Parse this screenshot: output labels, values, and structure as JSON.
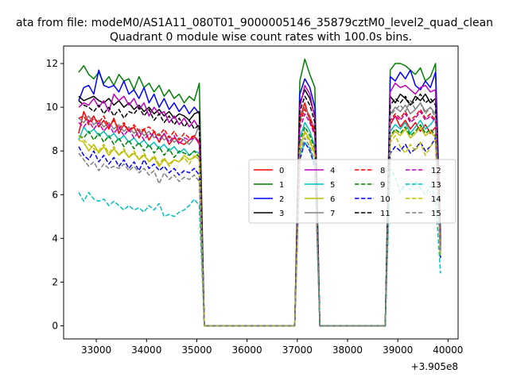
{
  "chart_data": {
    "type": "line",
    "suptitle": "ata from file: modeM0/AS1A11_080T01_9000005146_35879cztM0_level2_quad_clean",
    "title": "Quadrant 0 module wise count rates with 100.0s bins.",
    "xlabel": "",
    "ylabel": "",
    "offset_text": "+3.905e8",
    "xlim": [
      32350,
      40200
    ],
    "ylim": [
      -0.6,
      12.8
    ],
    "xticks": [
      33000,
      34000,
      35000,
      36000,
      37000,
      38000,
      39000,
      40000
    ],
    "yticks": [
      0,
      2,
      4,
      6,
      8,
      10,
      12
    ],
    "grid": false,
    "legend": {
      "placement": "center-right",
      "columns": 4
    },
    "segments": [
      {
        "name": "segment-1",
        "x_start": 32650,
        "x_end": 35050,
        "step": 100
      },
      {
        "name": "segment-2",
        "x_start": 37050,
        "x_end": 37350,
        "step": 100
      },
      {
        "name": "segment-3",
        "x_start": 38850,
        "x_end": 39850,
        "step": 100
      }
    ],
    "zero_x": [
      35150,
      36950,
      37450,
      38750
    ],
    "series": [
      {
        "name": "0",
        "color": "#ff0000",
        "dashed": false,
        "seg1": [
          8.8,
          9.8,
          9.3,
          9.6,
          9.1,
          9.4,
          9.0,
          9.5,
          8.8,
          9.2,
          8.9,
          9.1,
          8.6,
          9.0,
          8.5,
          8.9,
          8.4,
          8.8,
          8.3,
          8.6,
          8.4,
          8.3,
          8.5,
          8.7,
          8.3
        ],
        "seg2": [
          9.5,
          10.2,
          9.4,
          8.8
        ],
        "seg3": [
          9.2,
          9.6,
          9.1,
          9.4,
          9.0,
          9.3,
          8.9,
          9.2,
          8.8,
          9.1,
          3.6
        ]
      },
      {
        "name": "1",
        "color": "#008000",
        "dashed": false,
        "seg1": [
          11.6,
          11.9,
          11.5,
          11.3,
          11.6,
          11.1,
          11.4,
          11.0,
          11.5,
          11.2,
          11.3,
          10.8,
          11.4,
          10.9,
          11.1,
          10.7,
          11.0,
          10.5,
          10.8,
          10.4,
          10.6,
          10.2,
          10.5,
          10.3,
          11.1
        ],
        "seg2": [
          11.2,
          12.2,
          11.5,
          10.9
        ],
        "seg3": [
          11.7,
          12.0,
          12.0,
          11.9,
          11.7,
          11.5,
          11.8,
          11.2,
          11.4,
          12.0,
          4.3
        ]
      },
      {
        "name": "2",
        "color": "#0000ff",
        "dashed": false,
        "seg1": [
          10.3,
          10.9,
          11.0,
          10.6,
          11.7,
          11.0,
          10.9,
          11.0,
          10.7,
          11.2,
          10.6,
          10.8,
          10.4,
          10.9,
          10.2,
          10.6,
          10.0,
          10.4,
          9.9,
          10.2,
          9.8,
          10.1,
          9.7,
          10.0,
          9.7
        ],
        "seg2": [
          10.6,
          11.3,
          10.9,
          10.0
        ],
        "seg3": [
          11.4,
          11.2,
          11.6,
          11.3,
          11.7,
          11.0,
          10.8,
          11.2,
          10.9,
          11.6,
          4.0
        ]
      },
      {
        "name": "3",
        "color": "#000000",
        "dashed": false,
        "seg1": [
          10.5,
          10.3,
          10.4,
          10.5,
          10.3,
          10.2,
          10.4,
          10.1,
          10.3,
          10.0,
          10.2,
          9.9,
          10.1,
          9.8,
          10.0,
          9.7,
          9.9,
          9.6,
          9.8,
          9.5,
          9.7,
          9.6,
          9.4,
          9.7,
          9.8
        ],
        "seg2": [
          10.2,
          10.8,
          10.4,
          9.6
        ],
        "seg3": [
          10.5,
          10.2,
          10.6,
          10.4,
          10.1,
          10.5,
          10.3,
          10.6,
          10.2,
          10.4,
          3.7
        ]
      },
      {
        "name": "4",
        "color": "#bf00bf",
        "dashed": false,
        "seg1": [
          10.0,
          10.2,
          10.1,
          10.4,
          10.0,
          10.3,
          9.8,
          10.6,
          10.3,
          10.5,
          10.1,
          10.4,
          9.9,
          10.2,
          9.6,
          10.0,
          9.7,
          9.8,
          9.3,
          9.6,
          9.2,
          9.5,
          9.1,
          9.4,
          9.0
        ],
        "seg2": [
          10.0,
          11.0,
          10.6,
          9.5
        ],
        "seg3": [
          10.7,
          11.1,
          10.9,
          11.0,
          10.8,
          10.6,
          10.9,
          11.0,
          10.7,
          10.8,
          3.9
        ]
      },
      {
        "name": "5",
        "color": "#00bfbf",
        "dashed": false,
        "seg1": [
          8.5,
          9.1,
          8.8,
          9.0,
          8.7,
          8.9,
          8.6,
          8.8,
          8.5,
          8.7,
          8.4,
          8.6,
          8.3,
          8.5,
          8.2,
          8.4,
          8.1,
          8.3,
          8.0,
          8.2,
          7.9,
          8.1,
          7.8,
          8.0,
          7.9
        ],
        "seg2": [
          8.6,
          9.3,
          8.9,
          8.2
        ],
        "seg3": [
          8.9,
          9.2,
          9.0,
          9.3,
          8.8,
          9.1,
          9.4,
          9.0,
          9.2,
          9.5,
          3.3
        ]
      },
      {
        "name": "6",
        "color": "#bfbf00",
        "dashed": false,
        "seg1": [
          8.5,
          8.4,
          8.0,
          8.3,
          7.9,
          8.2,
          7.8,
          8.1,
          7.8,
          8.0,
          7.7,
          7.9,
          7.6,
          7.8,
          7.5,
          7.7,
          7.3,
          7.6,
          7.4,
          7.6,
          7.5,
          7.8,
          7.6,
          7.7,
          7.9
        ],
        "seg2": [
          8.1,
          8.9,
          8.5,
          7.9
        ],
        "seg3": [
          8.6,
          8.9,
          8.7,
          9.0,
          8.6,
          8.8,
          9.1,
          8.7,
          8.9,
          8.6,
          3.2
        ]
      },
      {
        "name": "7",
        "color": "#808080",
        "dashed": false,
        "seg1": [
          9.5,
          9.3,
          9.6,
          9.2,
          9.4,
          9.1,
          9.3,
          9.0,
          9.2,
          8.9,
          9.1,
          8.8,
          9.0,
          8.7,
          8.9,
          8.6,
          8.8,
          8.5,
          8.7,
          8.4,
          8.6,
          8.5,
          8.3,
          8.6,
          9.2
        ],
        "seg2": [
          9.4,
          10.0,
          9.6,
          9.0
        ],
        "seg3": [
          9.7,
          10.0,
          9.8,
          10.1,
          9.7,
          9.9,
          10.2,
          9.8,
          10.0,
          9.7,
          3.6
        ]
      },
      {
        "name": "8",
        "color": "#ff0000",
        "dashed": true,
        "seg1": [
          9.5,
          9.6,
          9.2,
          9.5,
          9.3,
          9.6,
          9.1,
          9.4,
          9.0,
          9.3,
          8.9,
          9.2,
          8.9,
          9.0,
          9.1,
          8.9,
          8.7,
          9.0,
          8.6,
          8.9,
          8.5,
          8.8,
          8.6,
          8.7,
          8.4
        ],
        "seg2": [
          9.3,
          9.9,
          9.5,
          8.9
        ],
        "seg3": [
          9.4,
          9.7,
          9.5,
          9.8,
          9.4,
          9.6,
          9.9,
          9.5,
          9.7,
          9.4,
          3.5
        ]
      },
      {
        "name": "9",
        "color": "#008000",
        "dashed": true,
        "seg1": [
          8.7,
          8.6,
          8.9,
          8.5,
          8.8,
          8.4,
          8.7,
          8.3,
          8.6,
          8.2,
          8.5,
          8.1,
          8.4,
          8.0,
          8.3,
          7.9,
          8.2,
          7.8,
          8.1,
          7.7,
          8.0,
          7.9,
          7.8,
          8.0,
          7.7
        ],
        "seg2": [
          8.4,
          9.1,
          8.7,
          8.1
        ],
        "seg3": [
          8.7,
          9.0,
          8.8,
          9.1,
          8.7,
          8.9,
          9.2,
          8.8,
          9.0,
          8.7,
          3.3
        ]
      },
      {
        "name": "10",
        "color": "#0000ff",
        "dashed": true,
        "seg1": [
          8.2,
          7.8,
          7.6,
          8.0,
          7.5,
          7.8,
          7.4,
          7.7,
          7.3,
          7.6,
          7.2,
          7.5,
          7.1,
          7.6,
          7.2,
          7.4,
          7.1,
          7.3,
          7.0,
          7.2,
          6.9,
          7.1,
          7.0,
          7.2,
          6.9
        ],
        "seg2": [
          7.6,
          8.4,
          8.0,
          7.3
        ],
        "seg3": [
          7.9,
          8.2,
          8.0,
          8.3,
          7.9,
          8.1,
          8.4,
          8.0,
          8.2,
          8.6,
          3.1
        ]
      },
      {
        "name": "11",
        "color": "#000000",
        "dashed": true,
        "seg1": [
          10.3,
          10.1,
          10.0,
          9.8,
          10.1,
          9.7,
          10.0,
          9.6,
          9.9,
          9.5,
          9.8,
          9.7,
          10.0,
          9.6,
          9.9,
          9.4,
          9.7,
          9.3,
          9.6,
          9.2,
          9.5,
          9.1,
          9.4,
          9.0,
          9.2
        ],
        "seg2": [
          9.8,
          10.5,
          10.1,
          9.3
        ],
        "seg3": [
          10.1,
          10.4,
          10.2,
          10.5,
          10.1,
          10.3,
          10.6,
          10.2,
          10.4,
          10.1,
          3.7
        ]
      },
      {
        "name": "12",
        "color": "#bf00bf",
        "dashed": true,
        "seg1": [
          9.3,
          9.1,
          9.4,
          9.0,
          9.3,
          8.9,
          9.2,
          8.8,
          9.1,
          8.7,
          9.0,
          8.6,
          8.9,
          8.5,
          8.8,
          8.7,
          8.5,
          8.8,
          8.4,
          8.7,
          8.3,
          8.6,
          8.5,
          8.6,
          8.4
        ],
        "seg2": [
          9.0,
          9.7,
          9.3,
          8.7
        ],
        "seg3": [
          9.3,
          9.6,
          9.4,
          9.7,
          9.3,
          9.5,
          9.8,
          9.4,
          9.6,
          9.3,
          3.4
        ]
      },
      {
        "name": "13",
        "color": "#00bfbf",
        "dashed": true,
        "seg1": [
          6.1,
          5.7,
          6.1,
          5.8,
          5.7,
          5.8,
          5.5,
          5.7,
          5.5,
          5.3,
          5.5,
          5.3,
          5.4,
          5.2,
          5.5,
          5.3,
          5.6,
          5.0,
          5.1,
          5.0,
          5.2,
          5.3,
          5.5,
          5.8,
          5.5
        ],
        "seg2": [
          7.8,
          8.4,
          8.1,
          7.4
        ],
        "seg3": [
          7.2,
          6.8,
          6.1,
          6.5,
          6.2,
          6.6,
          6.3,
          6.0,
          6.4,
          5.9,
          2.4
        ]
      },
      {
        "name": "14",
        "color": "#bfbf00",
        "dashed": true,
        "seg1": [
          8.7,
          8.5,
          8.3,
          8.1,
          8.0,
          8.3,
          7.9,
          8.2,
          7.8,
          8.1,
          7.7,
          8.0,
          7.6,
          7.9,
          7.5,
          7.8,
          7.4,
          7.7,
          7.3,
          7.6,
          7.5,
          7.7,
          7.4,
          7.8,
          7.6
        ],
        "seg2": [
          8.2,
          8.8,
          8.4,
          7.8
        ],
        "seg3": [
          8.4,
          8.7,
          8.2,
          7.9,
          8.3,
          8.0,
          8.4,
          7.8,
          8.2,
          8.5,
          3.2
        ]
      },
      {
        "name": "15",
        "color": "#808080",
        "dashed": true,
        "seg1": [
          7.9,
          7.6,
          7.3,
          7.5,
          7.1,
          7.4,
          7.2,
          7.3,
          7.2,
          7.4,
          7.1,
          7.3,
          7.0,
          7.2,
          6.9,
          7.1,
          6.5,
          7.0,
          6.7,
          6.9,
          6.6,
          6.8,
          6.7,
          6.9,
          6.6
        ],
        "seg2": [
          7.9,
          8.6,
          8.2,
          7.5
        ],
        "seg3": [
          9.6,
          9.9,
          10.1,
          9.8,
          10.3,
          9.9,
          10.2,
          9.7,
          10.0,
          9.5,
          3.5
        ]
      }
    ]
  }
}
